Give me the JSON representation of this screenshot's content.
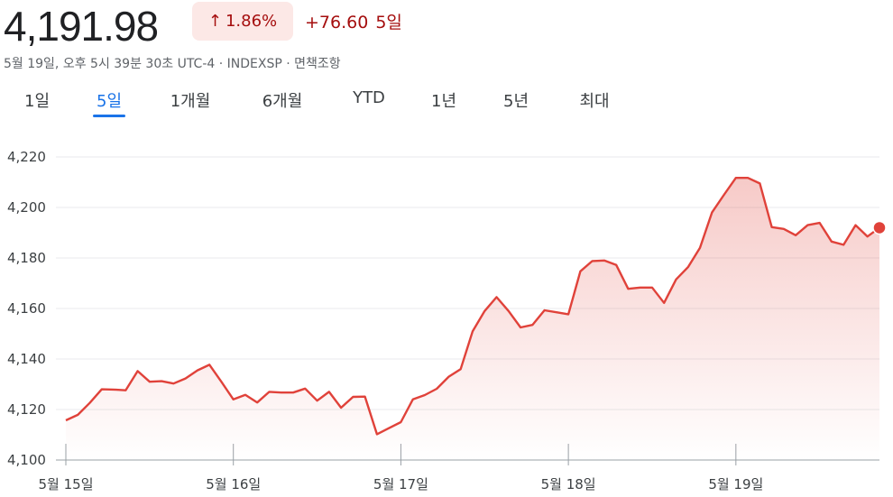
{
  "quote": {
    "price": "4,191.98",
    "change_percent": "1.86%",
    "change_points": "+76.60",
    "change_period": "5일",
    "timestamp": "5월 19일, 오후 5시 39분 30초 UTC-4 · INDEXSP · 면책조항"
  },
  "tabs": [
    {
      "label": "1일",
      "active": false
    },
    {
      "label": "5일",
      "active": true
    },
    {
      "label": "1개월",
      "active": false
    },
    {
      "label": "6개월",
      "active": false
    },
    {
      "label": "YTD",
      "active": false
    },
    {
      "label": "1년",
      "active": false
    },
    {
      "label": "5년",
      "active": false
    },
    {
      "label": "최대",
      "active": false
    }
  ],
  "colors": {
    "line": "#e0423a",
    "down_badge_bg": "#fce8e6",
    "change_text": "#a50e0e",
    "active_tab": "#1a73e8"
  },
  "icons": {
    "change_arrow": "arrow-up-icon"
  },
  "chart_data": {
    "type": "area",
    "xlabel": "",
    "ylabel": "",
    "ylim": [
      4100,
      4220
    ],
    "yticks": [
      4100,
      4120,
      4140,
      4160,
      4180,
      4200,
      4220
    ],
    "ytick_labels": [
      "4,100",
      "4,120",
      "4,140",
      "4,160",
      "4,180",
      "4,200",
      "4,220"
    ],
    "x_tick_labels": [
      "5월 15일",
      "5월 16일",
      "5월 17일",
      "5월 18일",
      "5월 19일"
    ],
    "grid": true,
    "series": [
      {
        "values": [
          4115.7,
          4117.9,
          4122.6,
          4128.0,
          4127.9,
          4127.6,
          4135.2,
          4131.0,
          4131.2,
          4130.3,
          4132.3,
          4135.5,
          4137.7,
          4131.0,
          4124.0,
          4125.8,
          4122.8,
          4127.0,
          4126.7,
          4126.7,
          4128.3,
          4123.5,
          4127.0,
          4120.7,
          4125.0,
          4125.1,
          4110.2,
          4112.6,
          4115.0,
          4124.0,
          4125.7,
          4128.2,
          4133.0,
          4136.0,
          4151.0,
          4159.0,
          4164.5,
          4159.0,
          4152.5,
          4153.5,
          4159.3,
          4158.5,
          4157.7,
          4174.7,
          4178.8,
          4179.0,
          4177.2,
          4167.8,
          4168.3,
          4168.3,
          4162.2,
          4171.5,
          4176.4,
          4184.0,
          4198.0,
          4205.0,
          4211.7,
          4211.7,
          4209.5,
          4192.2,
          4191.5,
          4189.0,
          4193.0,
          4193.9,
          4186.5,
          4185.2,
          4193.0,
          4188.5,
          4191.98
        ]
      }
    ],
    "last_value": 4191.98
  }
}
